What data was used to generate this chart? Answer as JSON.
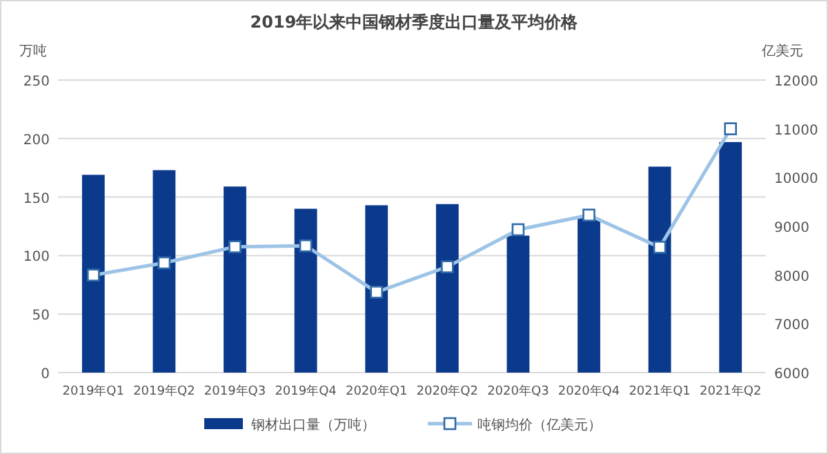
{
  "chart_data": {
    "type": "bar",
    "title": "2019年以来中国钢材季度出口量及平均价格",
    "ylabel": "万吨",
    "y2label": "亿美元",
    "categories": [
      "2019年Q1",
      "2019年Q2",
      "2019年Q3",
      "2019年Q4",
      "2020年Q1",
      "2020年Q2",
      "2020年Q3",
      "2020年Q4",
      "2021年Q1",
      "2021年Q2"
    ],
    "series": [
      {
        "name": "钢材出口量（万吨）",
        "color": "#0b3a8c",
        "values": [
          169,
          173,
          159,
          140,
          143,
          144,
          117,
          132,
          176,
          197
        ]
      },
      {
        "name": "吨钢均价（亿美元）",
        "type": "line",
        "axis": "y2",
        "color": "#9dc3e6",
        "marker": "square",
        "values": [
          8000,
          8250,
          8580,
          8600,
          7650,
          8170,
          8930,
          9230,
          8570,
          11000
        ]
      }
    ],
    "ylim": [
      0,
      250
    ],
    "yticks": [
      0,
      50,
      100,
      150,
      200,
      250
    ],
    "y2lim": [
      6000,
      12000
    ],
    "y2ticks": [
      6000,
      7000,
      8000,
      9000,
      10000,
      11000,
      12000
    ],
    "grid": "y",
    "legend": "bottom"
  }
}
